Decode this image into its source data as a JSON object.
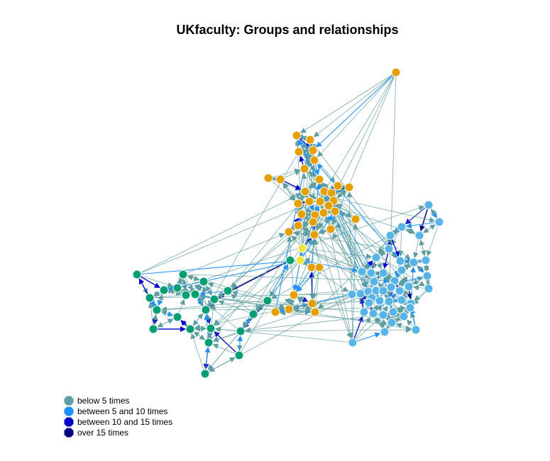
{
  "title": "UKfaculty: Groups and relationships",
  "colors": {
    "edge_below_5": "#5f9ea0",
    "edge_5_10": "#1e90ff",
    "edge_10_15": "#0000cd",
    "edge_over_15": "#000080",
    "group_orange": "#e69f00",
    "group_lightblue": "#56b4e9",
    "group_green": "#009e73",
    "group_yellow": "#f0e442"
  },
  "legend": [
    {
      "label": "below 5 times",
      "color": "#5f9ea0"
    },
    {
      "label": "between 5 and 10 times",
      "color": "#1e90ff"
    },
    {
      "label": "between 10 and 15 times",
      "color": "#0000cd"
    },
    {
      "label": "over 15 times",
      "color": "#000080"
    }
  ]
}
